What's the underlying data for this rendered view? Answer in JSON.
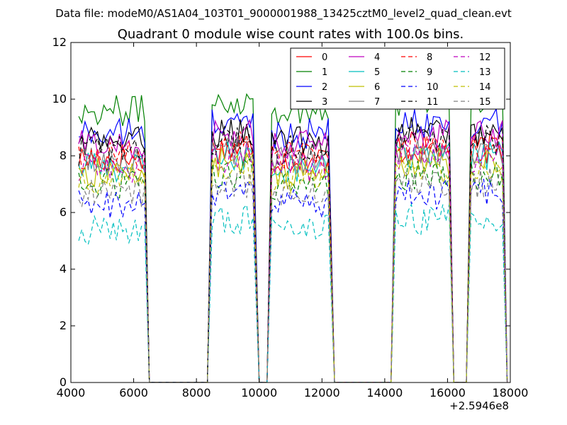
{
  "chart_data": {
    "type": "line",
    "suptitle": "Data file: modeM0/AS1A04_103T01_9000001988_13425cztM0_level2_quad_clean.evt",
    "title": "Quadrant 0 module wise count rates with 100.0s bins.",
    "xlabel": "",
    "ylabel": "",
    "x_offset_label": "+2.5946e8",
    "xlim": [
      4000,
      18000
    ],
    "ylim": [
      0,
      12
    ],
    "x_ticks": [
      4000,
      6000,
      8000,
      10000,
      12000,
      14000,
      16000,
      18000
    ],
    "y_ticks": [
      0,
      2,
      4,
      6,
      8,
      10,
      12
    ],
    "legend_location": "top-right",
    "segments": [
      [
        4250,
        6350
      ],
      [
        8500,
        9850
      ],
      [
        10400,
        12250
      ],
      [
        14350,
        16050
      ],
      [
        16750,
        17750
      ]
    ],
    "series": [
      {
        "name": "0",
        "color": "#ff0000",
        "dash": "solid",
        "level": 7.9
      },
      {
        "name": "1",
        "color": "#008000",
        "dash": "solid",
        "level": 9.6
      },
      {
        "name": "2",
        "color": "#0000ff",
        "dash": "solid",
        "level": 8.8
      },
      {
        "name": "3",
        "color": "#000000",
        "dash": "solid",
        "level": 8.5
      },
      {
        "name": "4",
        "color": "#bf00bf",
        "dash": "solid",
        "level": 8.4
      },
      {
        "name": "5",
        "color": "#00bfbf",
        "dash": "solid",
        "level": 7.6
      },
      {
        "name": "6",
        "color": "#bfbf00",
        "dash": "solid",
        "level": 7.4
      },
      {
        "name": "7",
        "color": "#808080",
        "dash": "solid",
        "level": 7.8
      },
      {
        "name": "8",
        "color": "#ff0000",
        "dash": "dashed",
        "level": 8.0
      },
      {
        "name": "9",
        "color": "#008000",
        "dash": "dashed",
        "level": 7.0
      },
      {
        "name": "10",
        "color": "#0000ff",
        "dash": "dashed",
        "level": 6.3
      },
      {
        "name": "11",
        "color": "#000000",
        "dash": "dashed",
        "level": 8.2
      },
      {
        "name": "12",
        "color": "#bf00bf",
        "dash": "dashed",
        "level": 7.6
      },
      {
        "name": "13",
        "color": "#00bfbf",
        "dash": "dashed",
        "level": 5.4
      },
      {
        "name": "14",
        "color": "#bfbf00",
        "dash": "dashed",
        "level": 7.2
      },
      {
        "name": "15",
        "color": "#808080",
        "dash": "dashed",
        "level": 6.7
      }
    ]
  }
}
